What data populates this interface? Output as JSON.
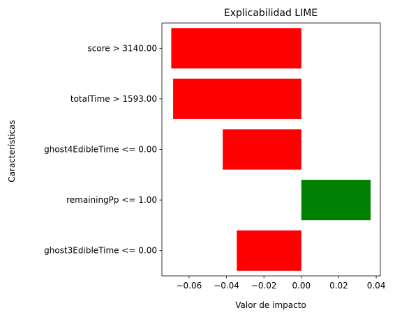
{
  "chart_data": {
    "type": "bar",
    "orientation": "horizontal",
    "title": "Explicabilidad LIME",
    "xlabel": "Valor de impacto",
    "ylabel": "Características",
    "categories": [
      "score > 3140.00",
      "totalTime > 1593.00",
      "ghost4EdibleTime <= 0.00",
      "remainingPp <= 1.00",
      "ghost3EdibleTime <= 0.00"
    ],
    "values": [
      -0.0695,
      -0.0685,
      -0.042,
      0.037,
      -0.0345
    ],
    "xlim": [
      -0.0745,
      0.0422
    ],
    "xticks": [
      -0.06,
      -0.04,
      -0.02,
      0.0,
      0.02,
      0.04
    ],
    "xtick_labels": [
      "−0.06",
      "−0.04",
      "−0.02",
      "0.00",
      "0.02",
      "0.04"
    ],
    "grid": false,
    "colors": {
      "negative": "#ff0000",
      "positive": "#008000",
      "axis": "#000000",
      "background": "#ffffff"
    }
  }
}
